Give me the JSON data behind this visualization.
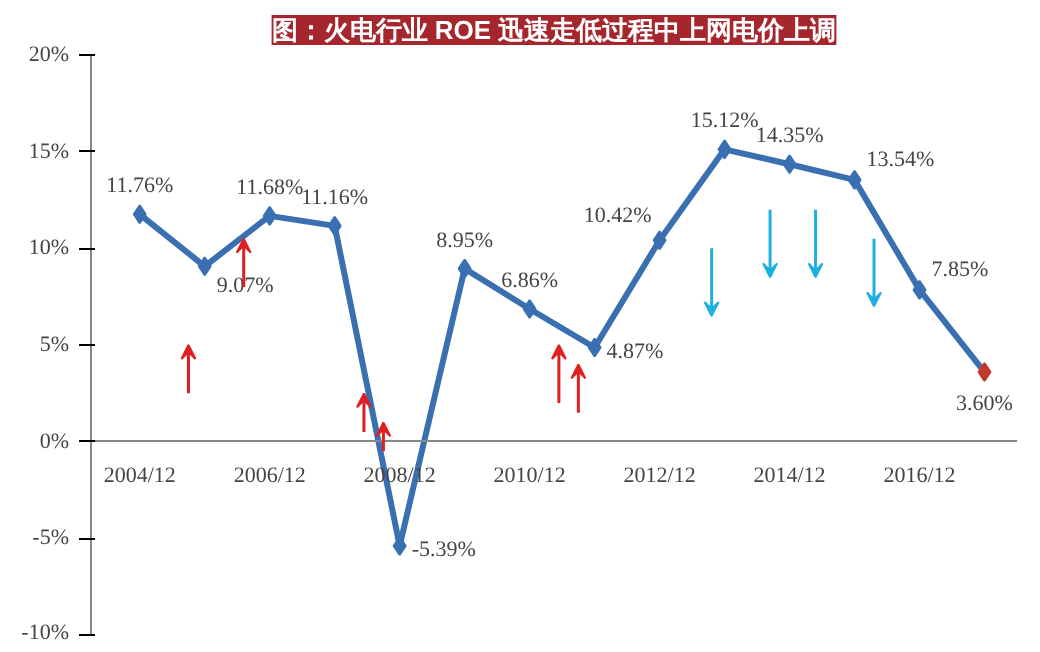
{
  "chart_data": {
    "type": "line",
    "title": "图：火电行业 ROE 迅速走低过程中上网电价上调",
    "categories": [
      "2004/12",
      null,
      "2006/12",
      null,
      "2008/12",
      null,
      "2010/12",
      null,
      "2012/12",
      null,
      "2014/12",
      null,
      "2016/12",
      null
    ],
    "series": [
      {
        "color": "#3a6fb2",
        "colors": [
          "#3a6fb2",
          "#3a6fb2",
          "#3a6fb2",
          "#3a6fb2",
          "#3a6fb2",
          "#3a6fb2",
          "#3a6fb2",
          "#3a6fb2",
          "#3a6fb2",
          "#3a6fb2",
          "#3a6fb2",
          "#3a6fb2",
          "#3a6fb2",
          "#c0392b"
        ],
        "values": [
          11.76,
          9.07,
          11.68,
          11.16,
          -5.39,
          8.95,
          6.86,
          4.87,
          10.42,
          15.12,
          14.35,
          13.54,
          7.85,
          3.6
        ],
        "value_labels": [
          "11.76%",
          "9.07%",
          "11.68%",
          "11.16%",
          "-5.39%",
          "8.95%",
          "6.86%",
          "4.87%",
          "10.42%",
          "15.12%",
          "14.35%",
          "13.54%",
          "7.85%",
          "3.60%"
        ]
      }
    ],
    "ylim": [
      -10,
      20
    ],
    "yticks": [
      {
        "value": -10,
        "label": "-10%"
      },
      {
        "value": -5,
        "label": "-5%"
      },
      {
        "value": 0,
        "label": "0%"
      },
      {
        "value": 5,
        "label": "5%"
      },
      {
        "value": 10,
        "label": "10%"
      },
      {
        "value": 15,
        "label": "15%"
      },
      {
        "value": 20,
        "label": "20%"
      }
    ],
    "marker": "diamond"
  }
}
